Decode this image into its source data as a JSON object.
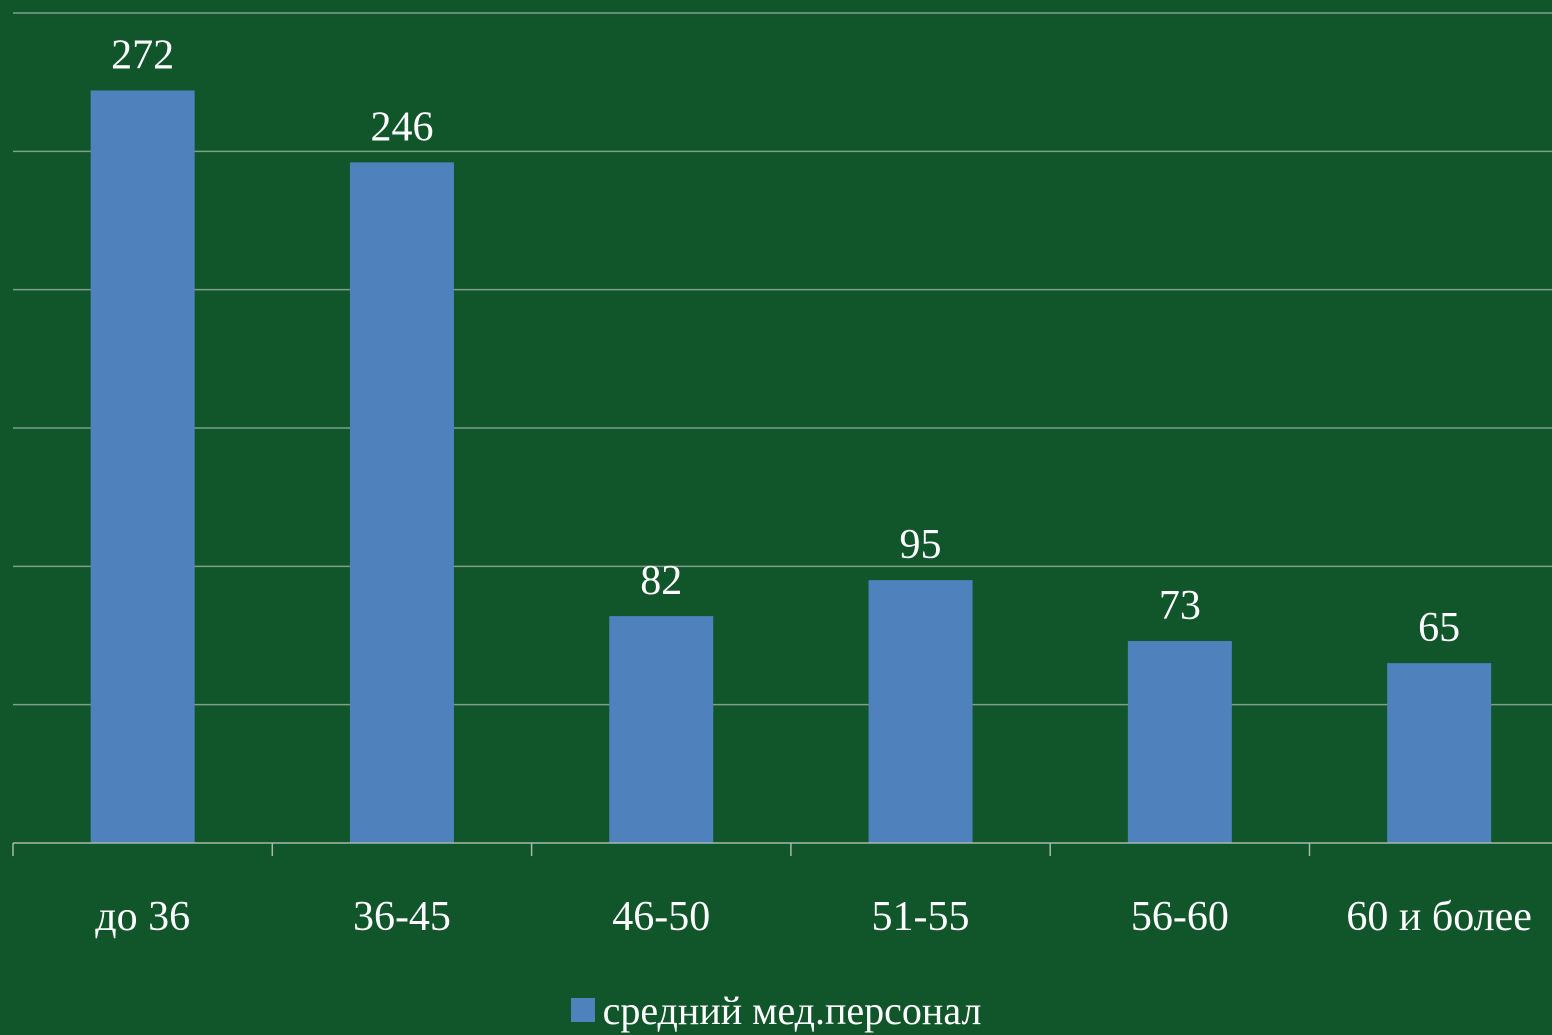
{
  "colors": {
    "background": "#11552b",
    "bar": "#4f81bd",
    "gridline": "#7f9f8a",
    "axis": "#a6b9ad",
    "text": "#ffffff"
  },
  "chart_data": {
    "type": "bar",
    "categories": [
      "до 36",
      "36-45",
      "46-50",
      "51-55",
      "56-60",
      "60 и более"
    ],
    "series": [
      {
        "name": "средний мед.персонал",
        "values": [
          272,
          246,
          82,
          95,
          73,
          65
        ]
      }
    ],
    "ylim": [
      0,
      300
    ],
    "grid": true,
    "data_labels": true,
    "legend_position": "bottom"
  },
  "legend": {
    "label": "средний мед.персонал"
  }
}
